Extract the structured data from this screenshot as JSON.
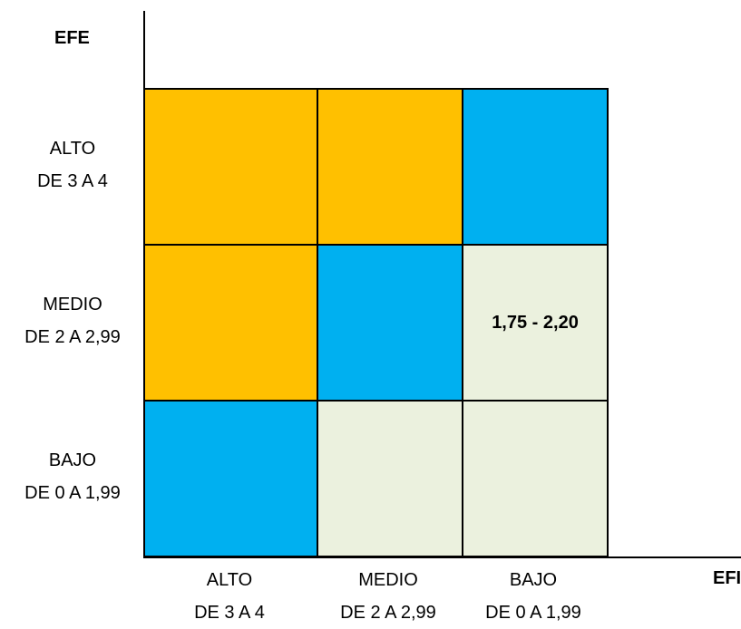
{
  "axes": {
    "vertical_title": "EFE",
    "horizontal_title": "EFI"
  },
  "rows": [
    {
      "level": "ALTO",
      "range": "DE 3 A 4"
    },
    {
      "level": "MEDIO",
      "range": "DE 2 A 2,99"
    },
    {
      "level": "BAJO",
      "range": "DE 0 A 1,99"
    }
  ],
  "columns": [
    {
      "level": "ALTO",
      "range": "DE 3 A 4"
    },
    {
      "level": "MEDIO",
      "range": "DE 2 A 2,99"
    },
    {
      "level": "BAJO",
      "range": "DE 0 A 1,99"
    }
  ],
  "colors": {
    "orange": "#ffc000",
    "blue": "#00b0f0",
    "light": "#ebf1de"
  },
  "cells": [
    [
      {
        "color": "orange",
        "text": ""
      },
      {
        "color": "orange",
        "text": ""
      },
      {
        "color": "blue",
        "text": ""
      }
    ],
    [
      {
        "color": "orange",
        "text": ""
      },
      {
        "color": "blue",
        "text": ""
      },
      {
        "color": "light",
        "text": "1,75 - 2,20"
      }
    ],
    [
      {
        "color": "blue",
        "text": ""
      },
      {
        "color": "light",
        "text": ""
      },
      {
        "color": "light",
        "text": ""
      }
    ]
  ]
}
